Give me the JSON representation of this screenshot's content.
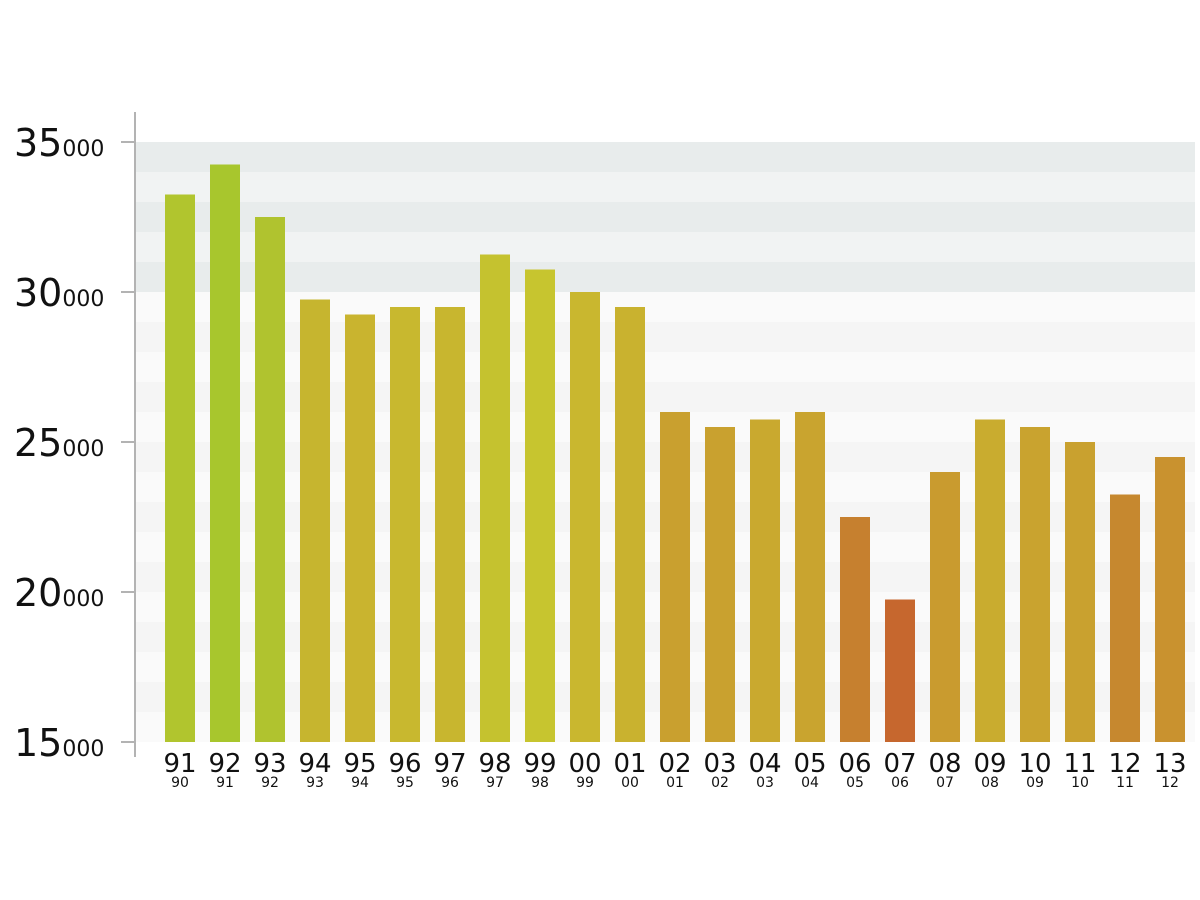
{
  "chart_data": {
    "type": "bar",
    "title": "",
    "xlabel": "",
    "ylabel": "",
    "ylim": [
      15000,
      35000
    ],
    "grid": "horizontal bands",
    "legend": "none",
    "y_ticks": [
      {
        "value": 15000,
        "major": "15",
        "minor": "000"
      },
      {
        "value": 20000,
        "major": "20",
        "minor": "000"
      },
      {
        "value": 25000,
        "major": "25",
        "minor": "000"
      },
      {
        "value": 30000,
        "major": "30",
        "minor": "000"
      },
      {
        "value": 35000,
        "major": "35",
        "minor": "000"
      }
    ],
    "categories": [
      {
        "label": "91",
        "sublabel": "90"
      },
      {
        "label": "92",
        "sublabel": "91"
      },
      {
        "label": "93",
        "sublabel": "92"
      },
      {
        "label": "94",
        "sublabel": "93"
      },
      {
        "label": "95",
        "sublabel": "94"
      },
      {
        "label": "96",
        "sublabel": "95"
      },
      {
        "label": "97",
        "sublabel": "96"
      },
      {
        "label": "98",
        "sublabel": "97"
      },
      {
        "label": "99",
        "sublabel": "98"
      },
      {
        "label": "00",
        "sublabel": "99"
      },
      {
        "label": "01",
        "sublabel": "00"
      },
      {
        "label": "02",
        "sublabel": "01"
      },
      {
        "label": "03",
        "sublabel": "02"
      },
      {
        "label": "04",
        "sublabel": "03"
      },
      {
        "label": "05",
        "sublabel": "04"
      },
      {
        "label": "06",
        "sublabel": "05"
      },
      {
        "label": "07",
        "sublabel": "06"
      },
      {
        "label": "08",
        "sublabel": "07"
      },
      {
        "label": "09",
        "sublabel": "08"
      },
      {
        "label": "10",
        "sublabel": "09"
      },
      {
        "label": "11",
        "sublabel": "10"
      },
      {
        "label": "12",
        "sublabel": "11"
      },
      {
        "label": "13",
        "sublabel": "12"
      }
    ],
    "values": [
      33250,
      34250,
      32500,
      29750,
      29250,
      29500,
      29500,
      31250,
      30750,
      30000,
      29500,
      26000,
      25500,
      25750,
      26000,
      22500,
      19750,
      24000,
      25750,
      25500,
      25000,
      23250,
      24500
    ],
    "bar_colors": [
      "#b1c52e",
      "#a8c62d",
      "#b0c32f",
      "#c6b52f",
      "#c9b42f",
      "#c8b82f",
      "#c8b62f",
      "#c5c22f",
      "#c7c52f",
      "#c9b72f",
      "#c9b22f",
      "#c9a02f",
      "#c9a12f",
      "#c9a92f",
      "#c9a42f",
      "#c6802f",
      "#c6672e",
      "#c99b2f",
      "#c9ac2f",
      "#c9a32f",
      "#c9a12f",
      "#c6882f",
      "#c9922f"
    ],
    "axis_color": "#b3b3b3",
    "band_colors": [
      "#e8ecec",
      "#f1f3f3",
      "#f5f5f5",
      "#fafafa"
    ]
  }
}
